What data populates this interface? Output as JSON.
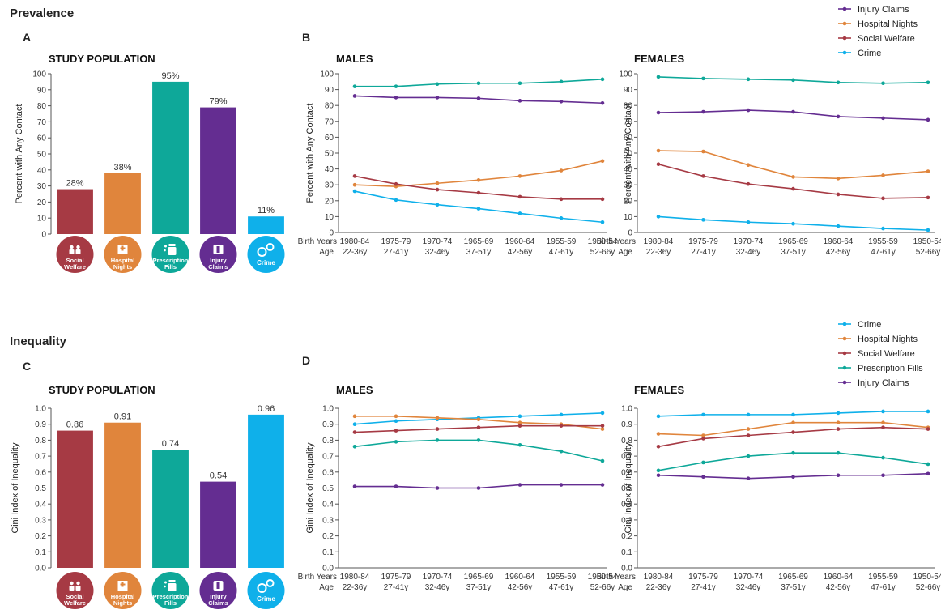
{
  "sections": {
    "prevalence": "Prevalence",
    "inequality": "Inequality"
  },
  "panel_letters": [
    "A",
    "B",
    "C",
    "D"
  ],
  "birth_years_label": "Birth Years",
  "age_label": "Age",
  "icons": [
    {
      "label1": "Social",
      "label2": "Welfare",
      "icon": "people-icon",
      "color": "#a63a44"
    },
    {
      "label1": "Hospital",
      "label2": "Nights",
      "icon": "hospital-icon",
      "color": "#e0853c"
    },
    {
      "label1": "Prescription",
      "label2": "Fills",
      "icon": "pill-bottle-icon",
      "color": "#0ea899"
    },
    {
      "label1": "Injury",
      "label2": "Claims",
      "icon": "bandage-icon",
      "color": "#642d91"
    },
    {
      "label1": "Crime",
      "label2": "",
      "icon": "handcuffs-icon",
      "color": "#0fb0ea"
    }
  ],
  "legend_top": [
    {
      "name": "Injury Claims",
      "color": "#642d91"
    },
    {
      "name": "Hospital Nights",
      "color": "#e0853c"
    },
    {
      "name": "Social Welfare",
      "color": "#a63a44"
    },
    {
      "name": "Crime",
      "color": "#0fb0ea"
    }
  ],
  "legend_bottom": [
    {
      "name": "Crime",
      "color": "#0fb0ea"
    },
    {
      "name": "Hospital Nights",
      "color": "#e0853c"
    },
    {
      "name": "Social Welfare",
      "color": "#a63a44"
    },
    {
      "name": "Prescription Fills",
      "color": "#0ea899"
    },
    {
      "name": "Injury Claims",
      "color": "#642d91"
    }
  ],
  "chart_data": [
    {
      "id": "A",
      "type": "bar",
      "title": "STUDY POPULATION",
      "ylabel": "Percent with Any Contact",
      "ylim": [
        0,
        100
      ],
      "yticks": [
        0,
        10,
        20,
        30,
        40,
        50,
        60,
        70,
        80,
        90,
        100
      ],
      "categories": [
        "Social Welfare",
        "Hospital Nights",
        "Prescription Fills",
        "Injury Claims",
        "Crime"
      ],
      "values": [
        28,
        38,
        95,
        79,
        11
      ],
      "value_labels": [
        "28%",
        "38%",
        "95%",
        "79%",
        "11%"
      ],
      "colors": [
        "#a63a44",
        "#e0853c",
        "#0ea899",
        "#642d91",
        "#0fb0ea"
      ]
    },
    {
      "id": "B-males",
      "type": "line",
      "title": "MALES",
      "ylabel": "Percent with Any Contact",
      "ylim": [
        0,
        100
      ],
      "yticks": [
        0,
        10,
        20,
        30,
        40,
        50,
        60,
        70,
        80,
        90,
        100
      ],
      "x": [
        "1980-84",
        "1975-79",
        "1970-74",
        "1965-69",
        "1960-64",
        "1955-59",
        "1950-54"
      ],
      "ages": [
        "22-36y",
        "27-41y",
        "32-46y",
        "37-51y",
        "42-56y",
        "47-61y",
        "52-66y"
      ],
      "series": [
        {
          "name": "Prescription Fills",
          "color": "#0ea899",
          "values": [
            92,
            92,
            93.5,
            94,
            94,
            95,
            96.5
          ]
        },
        {
          "name": "Injury Claims",
          "color": "#642d91",
          "values": [
            86,
            85,
            85,
            84.5,
            83,
            82.5,
            81.5
          ]
        },
        {
          "name": "Hospital Nights",
          "color": "#e0853c",
          "values": [
            30,
            29,
            31,
            33,
            35.5,
            39,
            45
          ]
        },
        {
          "name": "Social Welfare",
          "color": "#a63a44",
          "values": [
            35.5,
            30.5,
            27,
            25,
            22.5,
            21,
            21
          ]
        },
        {
          "name": "Crime",
          "color": "#0fb0ea",
          "values": [
            26,
            20.5,
            17.5,
            15,
            12,
            9,
            6.5
          ]
        }
      ]
    },
    {
      "id": "B-females",
      "type": "line",
      "title": "FEMALES",
      "ylabel": "Percent with Any Contact",
      "ylim": [
        0,
        100
      ],
      "yticks": [
        0,
        10,
        20,
        30,
        40,
        50,
        60,
        70,
        80,
        90,
        100
      ],
      "x": [
        "1980-84",
        "1975-79",
        "1970-74",
        "1965-69",
        "1960-64",
        "1955-59",
        "1950-54"
      ],
      "ages": [
        "22-36y",
        "27-41y",
        "32-46y",
        "37-51y",
        "42-56y",
        "47-61y",
        "52-66y"
      ],
      "series": [
        {
          "name": "Prescription Fills",
          "color": "#0ea899",
          "values": [
            98,
            97,
            96.5,
            96,
            94.5,
            94,
            94.5
          ]
        },
        {
          "name": "Injury Claims",
          "color": "#642d91",
          "values": [
            75.5,
            76,
            77,
            76,
            73,
            72,
            71
          ]
        },
        {
          "name": "Hospital Nights",
          "color": "#e0853c",
          "values": [
            51.5,
            51,
            42.5,
            35,
            34,
            36,
            38.5
          ]
        },
        {
          "name": "Social Welfare",
          "color": "#a63a44",
          "values": [
            43,
            35.5,
            30.5,
            27.5,
            24,
            21.5,
            22
          ]
        },
        {
          "name": "Crime",
          "color": "#0fb0ea",
          "values": [
            10,
            8,
            6.5,
            5.5,
            4,
            2.5,
            1.5
          ]
        }
      ]
    },
    {
      "id": "C",
      "type": "bar",
      "title": "STUDY POPULATION",
      "ylabel": "Gini Index of Inequality",
      "ylim": [
        0,
        1.0
      ],
      "yticks": [
        0.0,
        0.1,
        0.2,
        0.3,
        0.4,
        0.5,
        0.6,
        0.7,
        0.8,
        0.9,
        1.0
      ],
      "categories": [
        "Social Welfare",
        "Hospital Nights",
        "Prescription Fills",
        "Injury Claims",
        "Crime"
      ],
      "values": [
        0.86,
        0.91,
        0.74,
        0.54,
        0.96
      ],
      "value_labels": [
        "0.86",
        "0.91",
        "0.74",
        "0.54",
        "0.96"
      ],
      "colors": [
        "#a63a44",
        "#e0853c",
        "#0ea899",
        "#642d91",
        "#0fb0ea"
      ]
    },
    {
      "id": "D-males",
      "type": "line",
      "title": "MALES",
      "ylabel": "Gini Index of Inequality",
      "ylim": [
        0,
        1.0
      ],
      "yticks": [
        0.0,
        0.1,
        0.2,
        0.3,
        0.4,
        0.5,
        0.6,
        0.7,
        0.8,
        0.9,
        1.0
      ],
      "x": [
        "1980-84",
        "1975-79",
        "1970-74",
        "1965-69",
        "1960-64",
        "1955-59",
        "1950-54"
      ],
      "ages": [
        "22-36y",
        "27-41y",
        "32-46y",
        "37-51y",
        "42-56y",
        "47-61y",
        "52-66y"
      ],
      "series": [
        {
          "name": "Crime",
          "color": "#0fb0ea",
          "values": [
            0.9,
            0.92,
            0.93,
            0.94,
            0.95,
            0.96,
            0.97
          ]
        },
        {
          "name": "Hospital Nights",
          "color": "#e0853c",
          "values": [
            0.95,
            0.95,
            0.94,
            0.93,
            0.91,
            0.9,
            0.87
          ]
        },
        {
          "name": "Social Welfare",
          "color": "#a63a44",
          "values": [
            0.85,
            0.86,
            0.87,
            0.88,
            0.89,
            0.89,
            0.89
          ]
        },
        {
          "name": "Prescription Fills",
          "color": "#0ea899",
          "values": [
            0.76,
            0.79,
            0.8,
            0.8,
            0.77,
            0.73,
            0.67
          ]
        },
        {
          "name": "Injury Claims",
          "color": "#642d91",
          "values": [
            0.51,
            0.51,
            0.5,
            0.5,
            0.52,
            0.52,
            0.52
          ]
        }
      ]
    },
    {
      "id": "D-females",
      "type": "line",
      "title": "FEMALES",
      "ylabel": "Gini Index of Inequality",
      "ylim": [
        0,
        1.0
      ],
      "yticks": [
        0.0,
        0.1,
        0.2,
        0.3,
        0.4,
        0.5,
        0.6,
        0.7,
        0.8,
        0.9,
        1.0
      ],
      "x": [
        "1980-84",
        "1975-79",
        "1970-74",
        "1965-69",
        "1960-64",
        "1955-59",
        "1950-54"
      ],
      "ages": [
        "22-36y",
        "27-41y",
        "32-46y",
        "37-51y",
        "42-56y",
        "47-61y",
        "52-66y"
      ],
      "series": [
        {
          "name": "Crime",
          "color": "#0fb0ea",
          "values": [
            0.95,
            0.96,
            0.96,
            0.96,
            0.97,
            0.98,
            0.98
          ]
        },
        {
          "name": "Hospital Nights",
          "color": "#e0853c",
          "values": [
            0.84,
            0.83,
            0.87,
            0.91,
            0.91,
            0.91,
            0.88
          ]
        },
        {
          "name": "Social Welfare",
          "color": "#a63a44",
          "values": [
            0.76,
            0.81,
            0.83,
            0.85,
            0.87,
            0.88,
            0.87
          ]
        },
        {
          "name": "Prescription Fills",
          "color": "#0ea899",
          "values": [
            0.61,
            0.66,
            0.7,
            0.72,
            0.72,
            0.69,
            0.65
          ]
        },
        {
          "name": "Injury Claims",
          "color": "#642d91",
          "values": [
            0.58,
            0.57,
            0.56,
            0.57,
            0.58,
            0.58,
            0.59
          ]
        }
      ]
    }
  ]
}
